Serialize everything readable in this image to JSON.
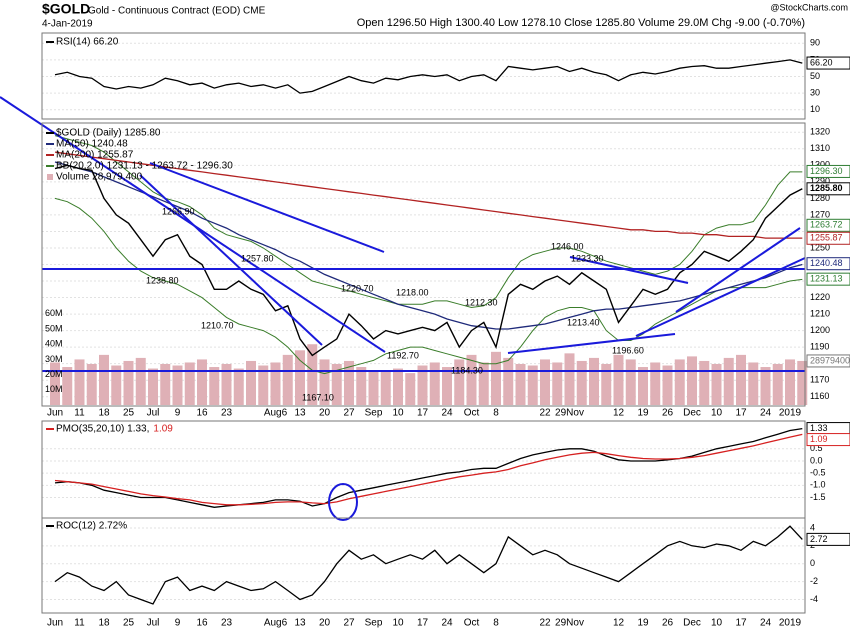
{
  "header": {
    "symbol": "$GOLD",
    "name": "Gold - Continuous Contract (EOD) CME",
    "date": "4-Jan-2019",
    "quote": "Open 1296.50 High 1300.40 Low 1278.10 Close 1285.80 Volume 29.0M Chg -9.00 (-0.70%)",
    "credit": "@StockCharts.com"
  },
  "annotations": [
    "1266.90",
    "1238.80",
    "1257.80",
    "1210.70",
    "1167.10",
    "1220.70",
    "1218.00",
    "1192.70",
    "1212.30",
    "1184.30",
    "1246.00",
    "1233.30",
    "1213.40",
    "1196.60"
  ],
  "chart_data": [
    {
      "type": "line",
      "ylim": [
        0,
        100
      ],
      "yticks": [
        10,
        30,
        50,
        70,
        90
      ],
      "grid": true,
      "last_labels": [
        "66.20"
      ],
      "series": [
        {
          "name": "RSI(14) 66.20",
          "color": "#000000",
          "values": [
            52,
            55,
            50,
            48,
            38,
            35,
            38,
            36,
            40,
            48,
            45,
            40,
            42,
            36,
            40,
            42,
            38,
            40,
            36,
            40,
            30,
            32,
            38,
            44,
            50,
            45,
            42,
            48,
            46,
            50,
            52,
            50,
            52,
            45,
            50,
            52,
            45,
            62,
            60,
            58,
            60,
            62,
            56,
            60,
            55,
            52,
            45,
            52,
            55,
            53,
            56,
            60,
            62,
            63,
            60,
            60,
            62,
            64,
            66,
            68,
            70,
            66.2
          ]
        }
      ]
    },
    {
      "type": "line",
      "ylim": [
        1155,
        1325
      ],
      "grid": true,
      "yticks": [
        1160,
        1170,
        1180,
        1190,
        1200,
        1210,
        1220,
        1230,
        1240,
        1250,
        1260,
        1270,
        1280,
        1290,
        1300,
        1310,
        1320
      ],
      "last_labels": [
        "1296.30",
        "1285.80",
        "1263.72",
        "1255.87",
        "1240.48",
        "1231.13"
      ],
      "categories": [
        "Jun",
        null,
        "11",
        null,
        "18",
        null,
        "25",
        null,
        "Jul",
        null,
        "9",
        null,
        "16",
        null,
        "23",
        null,
        null,
        null,
        "Aug6",
        null,
        "13",
        null,
        "20",
        null,
        "27",
        null,
        "Sep",
        null,
        "10",
        null,
        "17",
        null,
        "24",
        null,
        "Oct",
        null,
        "8",
        null,
        null,
        null,
        "22",
        null,
        "29Nov",
        null,
        null,
        null,
        "12",
        null,
        "19",
        null,
        "26",
        null,
        "Dec",
        null,
        "10",
        null,
        "17",
        null,
        "24",
        null,
        "2019",
        null
      ],
      "volume": {
        "name": "Volume 28,979,400",
        "color": "#dfb0b6",
        "ylim": [
          0,
          185
        ],
        "last_label": "28979400",
        "yticks": [
          {
            "value": 10,
            "label": "10M"
          },
          {
            "value": 20,
            "label": "20M"
          },
          {
            "value": 30,
            "label": "30M"
          },
          {
            "value": 40,
            "label": "40M"
          },
          {
            "value": 50,
            "label": "50M"
          },
          {
            "value": 60,
            "label": "60M"
          }
        ],
        "values": [
          28,
          25,
          30,
          27,
          33,
          26,
          29,
          31,
          24,
          27,
          26,
          28,
          30,
          25,
          27,
          24,
          29,
          26,
          28,
          33,
          36,
          40,
          30,
          27,
          29,
          25,
          23,
          22,
          24,
          21,
          26,
          28,
          25,
          30,
          33,
          28,
          35,
          31,
          27,
          26,
          30,
          28,
          34,
          29,
          31,
          27,
          33,
          30,
          25,
          28,
          26,
          30,
          32,
          29,
          27,
          31,
          33,
          28,
          25,
          27,
          30,
          29
        ]
      },
      "series": [
        {
          "name": "BB(20,2.0) 1231.13 - 1263.72 - 1296.30",
          "color": "#3a7d2a",
          "upper": [
            1318,
            1316,
            1314,
            1312,
            1308,
            1302,
            1296,
            1290,
            1284,
            1280,
            1278,
            1275,
            1270,
            1262,
            1258,
            1256,
            1254,
            1250,
            1245,
            1240,
            1235,
            1230,
            1228,
            1226,
            1224,
            1222,
            1220,
            1218,
            1216,
            1216,
            1216,
            1218,
            1218,
            1216,
            1214,
            1215,
            1220,
            1232,
            1242,
            1246,
            1248,
            1250,
            1250,
            1248,
            1245,
            1242,
            1240,
            1238,
            1236,
            1234,
            1236,
            1240,
            1248,
            1258,
            1262,
            1264,
            1264,
            1266,
            1276,
            1288,
            1296,
            1296
          ],
          "lower": [
            1280,
            1278,
            1274,
            1268,
            1260,
            1250,
            1242,
            1236,
            1232,
            1230,
            1228,
            1224,
            1220,
            1214,
            1208,
            1204,
            1202,
            1200,
            1196,
            1190,
            1182,
            1176,
            1174,
            1176,
            1178,
            1180,
            1182,
            1186,
            1188,
            1190,
            1190,
            1188,
            1186,
            1184,
            1182,
            1180,
            1180,
            1182,
            1190,
            1200,
            1208,
            1212,
            1214,
            1214,
            1212,
            1200,
            1194,
            1194,
            1198,
            1204,
            1208,
            1212,
            1216,
            1220,
            1224,
            1226,
            1226,
            1226,
            1226,
            1228,
            1230,
            1231
          ]
        },
        {
          "name": "MA(200) 1255.87",
          "color": "#b22222",
          "values": [
            1308,
            1307,
            1306,
            1305,
            1304,
            1303,
            1302,
            1301,
            1300,
            1299,
            1298,
            1297,
            1296,
            1295,
            1294,
            1293,
            1292,
            1291,
            1290,
            1289,
            1288,
            1287,
            1286,
            1285,
            1284,
            1283,
            1282,
            1281,
            1280,
            1279,
            1278,
            1277,
            1276,
            1275,
            1274,
            1273,
            1272,
            1271,
            1270,
            1269,
            1268,
            1267,
            1266,
            1265,
            1264,
            1263,
            1262,
            1261,
            1261,
            1260,
            1260,
            1259,
            1259,
            1258,
            1258,
            1257,
            1257,
            1257,
            1256,
            1256,
            1256,
            1256
          ]
        },
        {
          "name": "MA(50) 1240.48",
          "color": "#1f2a7a",
          "values": [
            1302,
            1300,
            1298,
            1296,
            1293,
            1290,
            1287,
            1284,
            1281,
            1278,
            1275,
            1272,
            1268,
            1265,
            1262,
            1258,
            1255,
            1252,
            1249,
            1245,
            1242,
            1238,
            1234,
            1231,
            1228,
            1225,
            1222,
            1219,
            1216,
            1214,
            1212,
            1210,
            1207,
            1205,
            1203,
            1202,
            1201,
            1201,
            1202,
            1203,
            1204,
            1206,
            1208,
            1210,
            1212,
            1213,
            1213,
            1214,
            1215,
            1216,
            1217,
            1218,
            1220,
            1222,
            1224,
            1226,
            1228,
            1230,
            1232,
            1235,
            1238,
            1240
          ]
        },
        {
          "name": "$GOLD (Daily) 1285.80",
          "color": "#000000",
          "values": [
            1298,
            1300,
            1298,
            1297,
            1280,
            1270,
            1265,
            1255,
            1245,
            1255,
            1258,
            1245,
            1240,
            1225,
            1225,
            1230,
            1225,
            1222,
            1212,
            1215,
            1195,
            1185,
            1190,
            1195,
            1210,
            1203,
            1195,
            1200,
            1198,
            1200,
            1202,
            1200,
            1205,
            1190,
            1200,
            1205,
            1190,
            1222,
            1228,
            1225,
            1230,
            1233,
            1228,
            1235,
            1230,
            1225,
            1205,
            1215,
            1225,
            1222,
            1225,
            1235,
            1240,
            1248,
            1245,
            1242,
            1248,
            1255,
            1268,
            1275,
            1282,
            1285.8
          ]
        }
      ]
    },
    {
      "type": "line",
      "ylim": [
        -2.3,
        1.6
      ],
      "grid": true,
      "last_labels": [
        "1.33",
        "1.09"
      ],
      "yticks": [
        -1.5,
        {
          "value": -1,
          "label": "-1.0"
        },
        -0.5,
        {
          "value": 0,
          "label": "0.0"
        },
        0.5
      ],
      "series": [
        {
          "name": "PMO(35,20,10) 1.33,",
          "color": "#000000",
          "values": [
            -0.9,
            -0.85,
            -0.9,
            -1.0,
            -1.2,
            -1.3,
            -1.4,
            -1.5,
            -1.5,
            -1.5,
            -1.6,
            -1.7,
            -1.8,
            -1.9,
            -1.85,
            -1.8,
            -1.75,
            -1.7,
            -1.6,
            -1.6,
            -1.65,
            -1.85,
            -1.75,
            -1.5,
            -1.3,
            -1.2,
            -1.1,
            -1.0,
            -0.9,
            -0.8,
            -0.7,
            -0.6,
            -0.5,
            -0.45,
            -0.35,
            -0.3,
            -0.3,
            -0.1,
            0.1,
            0.25,
            0.35,
            0.45,
            0.5,
            0.5,
            0.4,
            0.2,
            0.05,
            0.0,
            0.0,
            0.0,
            0.05,
            0.1,
            0.2,
            0.35,
            0.5,
            0.6,
            0.7,
            0.8,
            0.95,
            1.1,
            1.25,
            1.33
          ]
        },
        {
          "name": "1.09",
          "color": "#d62020",
          "values": [
            -0.8,
            -0.85,
            -0.9,
            -0.95,
            -1.05,
            -1.15,
            -1.25,
            -1.35,
            -1.42,
            -1.48,
            -1.55,
            -1.6,
            -1.7,
            -1.75,
            -1.8,
            -1.8,
            -1.78,
            -1.75,
            -1.7,
            -1.68,
            -1.68,
            -1.72,
            -1.75,
            -1.68,
            -1.55,
            -1.45,
            -1.35,
            -1.25,
            -1.15,
            -1.05,
            -0.95,
            -0.85,
            -0.75,
            -0.65,
            -0.58,
            -0.5,
            -0.45,
            -0.35,
            -0.2,
            -0.08,
            0.05,
            0.15,
            0.25,
            0.32,
            0.35,
            0.3,
            0.22,
            0.15,
            0.1,
            0.08,
            0.08,
            0.1,
            0.15,
            0.22,
            0.32,
            0.42,
            0.52,
            0.62,
            0.74,
            0.86,
            0.98,
            1.09
          ]
        }
      ]
    },
    {
      "type": "line",
      "ylim": [
        -5.4,
        5
      ],
      "grid": true,
      "last_labels": [
        "2.72"
      ],
      "yticks": [
        -4,
        -2,
        0,
        2,
        4
      ],
      "series": [
        {
          "name": "ROC(12) 2.72%",
          "color": "#000000",
          "values": [
            -2,
            -1,
            -1.5,
            -2.5,
            -3,
            -2,
            -3.5,
            -4,
            -4.5,
            -2,
            -1.5,
            -3,
            -2.5,
            -3,
            -2,
            -2.5,
            -3,
            -2.8,
            -2,
            -3,
            -4,
            -3.5,
            -2,
            0,
            1.5,
            0.5,
            1,
            0,
            0.5,
            1,
            0.5,
            1.5,
            0,
            1,
            0,
            -1,
            0,
            3,
            2,
            1,
            1.5,
            1,
            0,
            -0.5,
            -1,
            -1.5,
            -2,
            -1,
            0,
            1,
            2,
            2.5,
            2,
            1.8,
            2.2,
            2,
            1.5,
            2.5,
            2,
            3,
            4.2,
            2.72
          ]
        }
      ]
    }
  ]
}
